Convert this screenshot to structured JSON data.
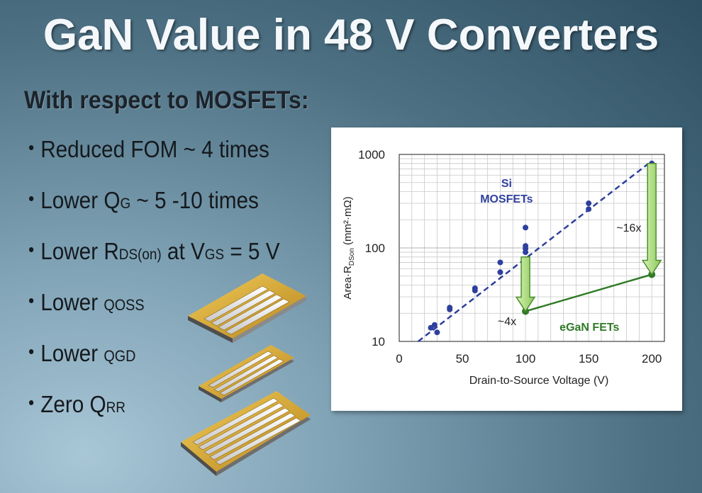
{
  "title": "GaN Value in 48 V Converters",
  "subtitle": "With respect to MOSFETs:",
  "bullets": [
    {
      "prefix": "Reduced FOM ~ 4 times"
    },
    {
      "prefix": "Lower Q",
      "sub": "G",
      "suffix": " ~ 5 -10 times"
    },
    {
      "prefix": "Lower R",
      "sub": "DS(on)",
      "middle": " at V",
      "sub2": "GS",
      "suffix": " = 5 V"
    },
    {
      "prefix": "Lower ",
      "small": "QOSS"
    },
    {
      "prefix": "Lower ",
      "small": "QGD"
    },
    {
      "prefix": "Zero Q",
      "sub": "RR"
    }
  ],
  "chart_data": {
    "type": "scatter",
    "xlabel": "Drain-to-Source Voltage (V)",
    "ylabel": "Area·R_DSon (mm²·mΩ)",
    "ylabel_main": "Area·R",
    "ylabel_sub": "DSon",
    "ylabel_tail": " (mm²·mΩ)",
    "xlim": [
      0,
      210
    ],
    "ylim": [
      10,
      1000
    ],
    "y_scale": "log",
    "grid": true,
    "x_ticks": [
      "0",
      "50",
      "100",
      "150",
      "200"
    ],
    "x_tick_values": [
      0,
      50,
      100,
      150,
      200
    ],
    "y_ticks": [
      "10",
      "100",
      "1000"
    ],
    "y_tick_values": [
      10,
      100,
      1000
    ],
    "series": [
      {
        "name": "Si MOSFETs",
        "label_line1": "Si",
        "label_line2": "MOSFETs",
        "color": "#2e3f9e",
        "points": [
          [
            25,
            14
          ],
          [
            28,
            15
          ],
          [
            30,
            12.5
          ],
          [
            40,
            22
          ],
          [
            40,
            23
          ],
          [
            60,
            35
          ],
          [
            60,
            37
          ],
          [
            80,
            55
          ],
          [
            80,
            70
          ],
          [
            100,
            90
          ],
          [
            100,
            98
          ],
          [
            100,
            105
          ],
          [
            100,
            165
          ],
          [
            150,
            260
          ],
          [
            150,
            300
          ],
          [
            200,
            800
          ]
        ],
        "trend": [
          [
            15,
            10
          ],
          [
            200,
            850
          ]
        ]
      },
      {
        "name": "eGaN FETs",
        "label": "eGaN FETs",
        "color": "#2f7a26",
        "points": [
          [
            100,
            21
          ],
          [
            200,
            52
          ]
        ]
      }
    ],
    "annotations": [
      {
        "text": "~4x",
        "arrow_from": [
          100,
          80
        ],
        "arrow_to": [
          100,
          21
        ]
      },
      {
        "text": "~16x",
        "arrow_from": [
          200,
          800
        ],
        "arrow_to": [
          200,
          52
        ]
      }
    ]
  },
  "colors": {
    "title": "#f4f8fb",
    "text_dark": "#15191d",
    "si_blue": "#2e3f9e",
    "gan_green": "#2f7a26",
    "arrow_fill": "#b5e08a",
    "chip_gold": "#d9a52a"
  }
}
